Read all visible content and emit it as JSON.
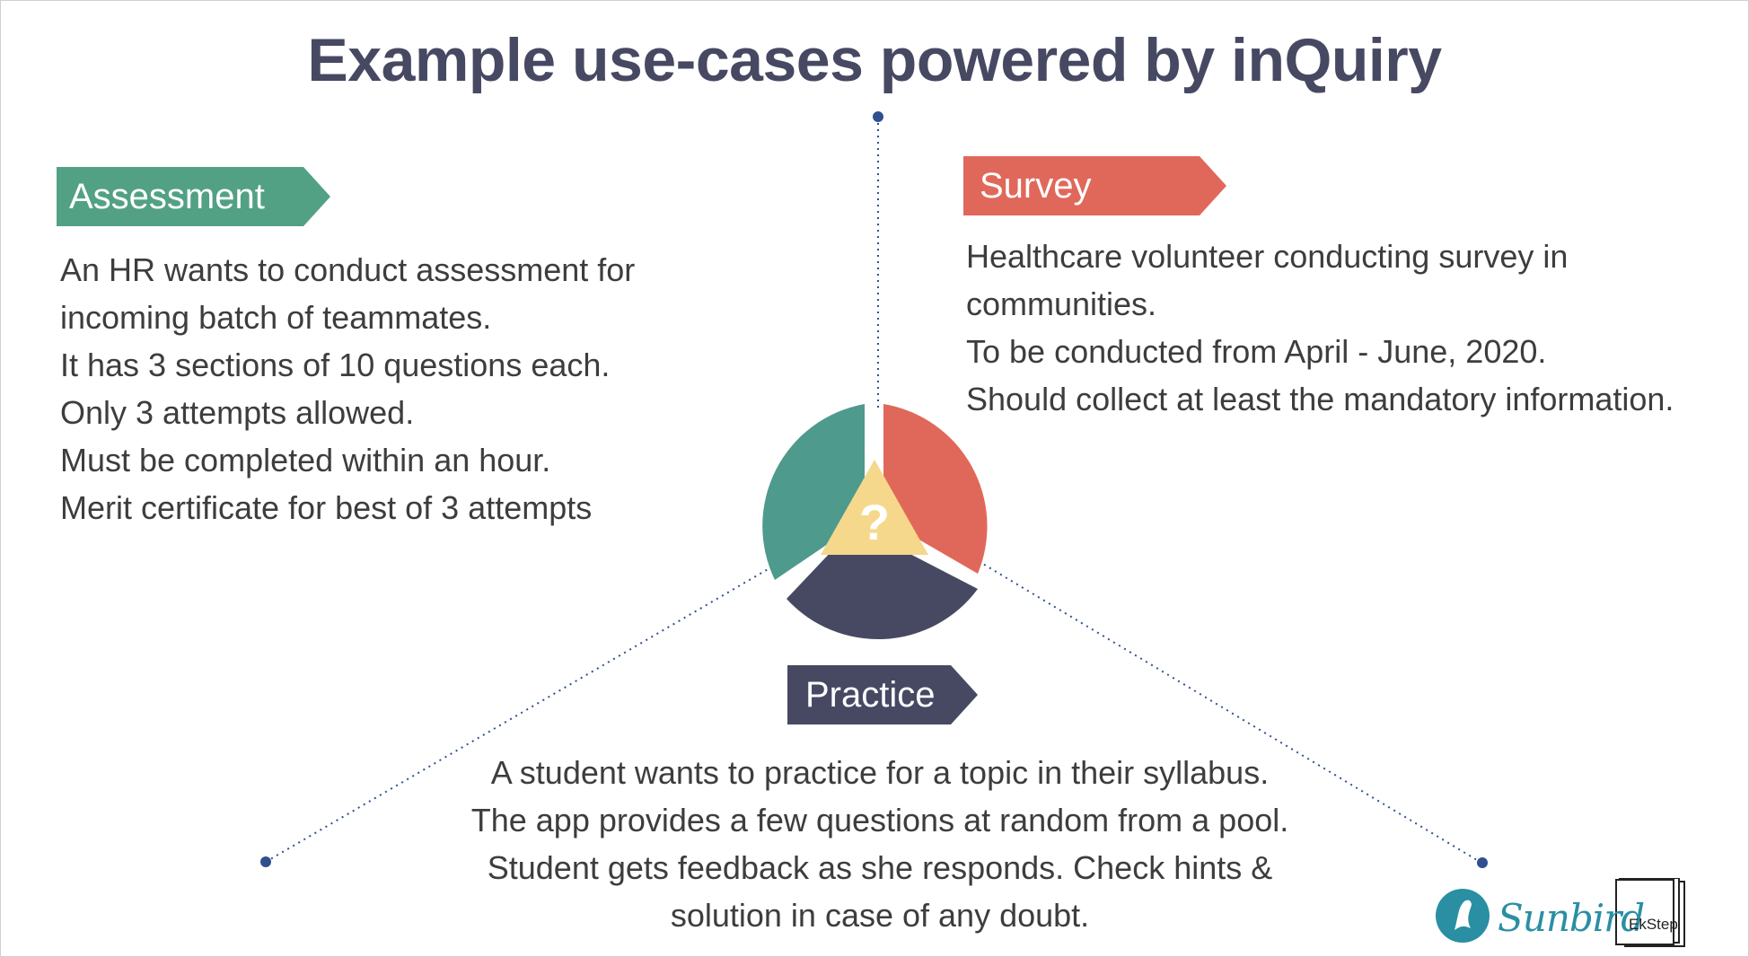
{
  "title": "Example use-cases powered by inQuiry",
  "assessment": {
    "label": "Assessment",
    "lines": [
      "An HR wants to conduct assessment for",
      "incoming batch of teammates.",
      "It has 3 sections of 10 questions each.",
      "Only 3 attempts allowed.",
      "Must be completed within an hour.",
      "Merit certificate for best of 3 attempts"
    ]
  },
  "survey": {
    "label": "Survey",
    "lines": [
      "Healthcare volunteer conducting survey in",
      "communities.",
      "To be conducted from April - June, 2020.",
      "Should collect at least the mandatory information."
    ]
  },
  "practice": {
    "label": "Practice",
    "lines": [
      "A student wants to practice for a topic in their syllabus.",
      "The app provides a few questions at random from a pool.",
      "Student gets feedback as she responds. Check hints &",
      "solution in case of any doubt."
    ]
  },
  "center_symbol": "?",
  "logos": {
    "sunbird": "Sunbird",
    "ekstep": "EkStep"
  },
  "colors": {
    "assessment": "#52a185",
    "survey": "#e0685a",
    "practice": "#474963",
    "center": "#f5d88c",
    "title": "#474963",
    "connector": "#2f4f8f"
  }
}
